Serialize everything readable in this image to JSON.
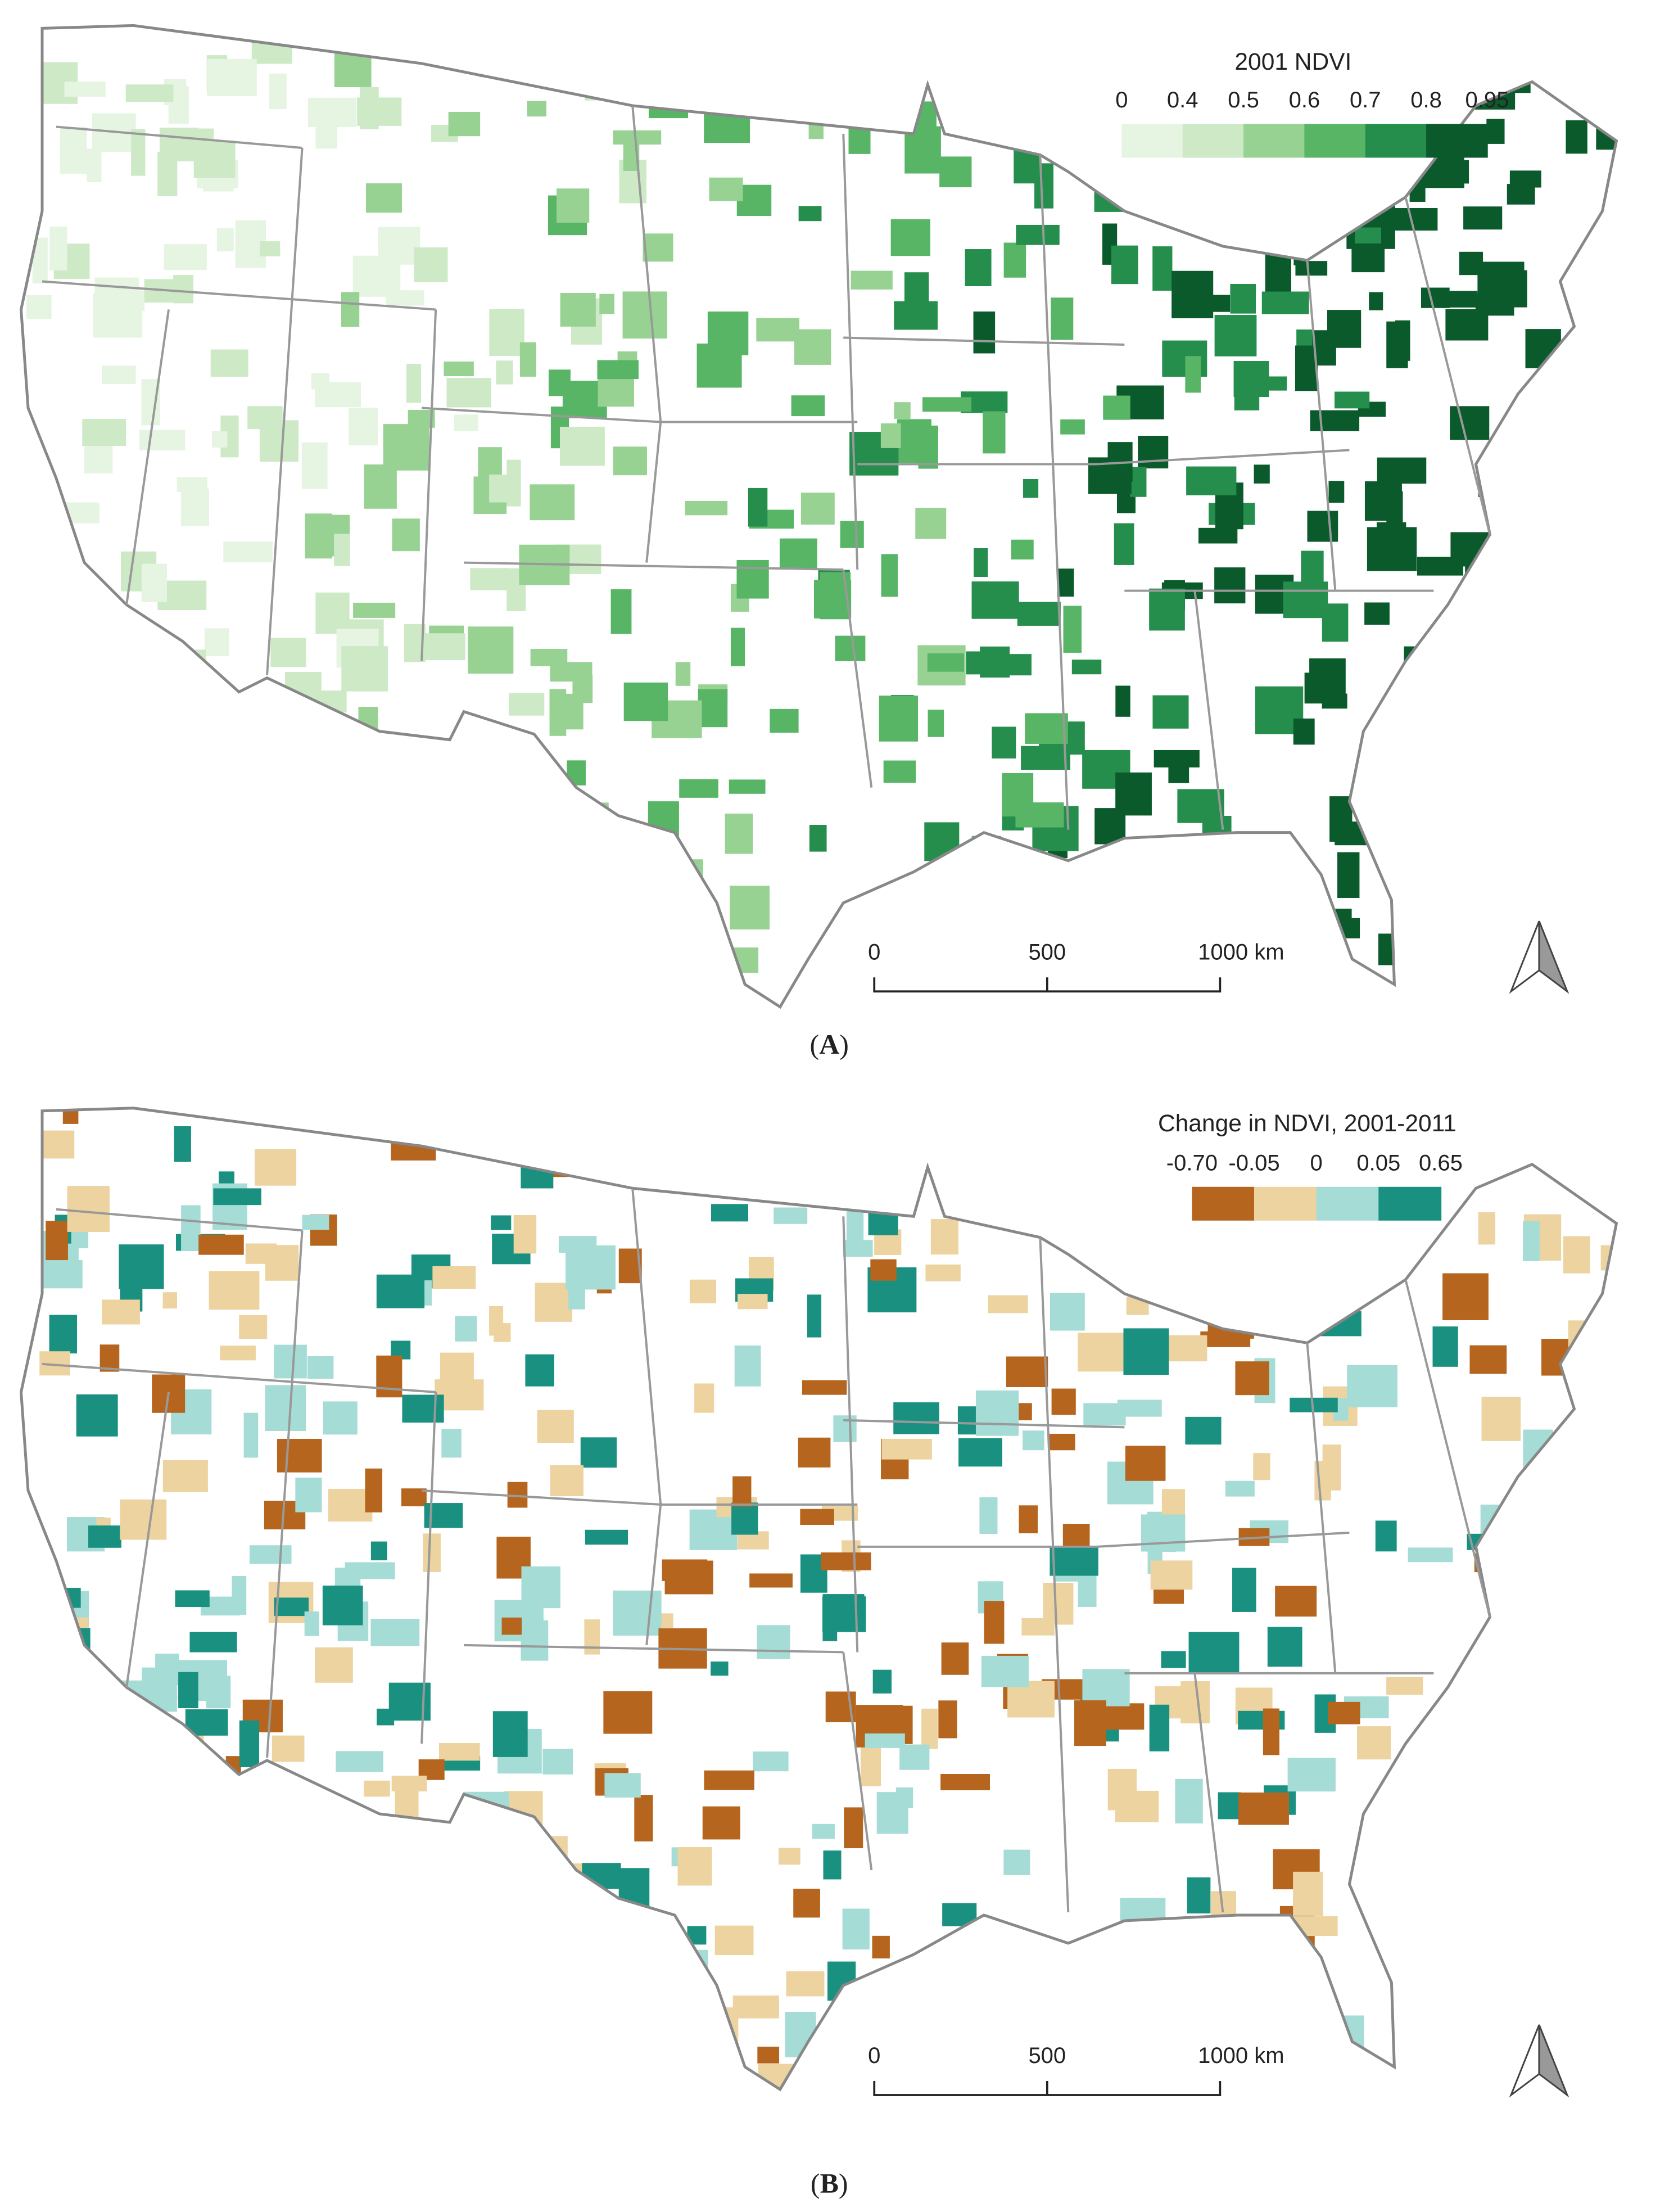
{
  "panels": [
    {
      "legend": {
        "title": "2001 NDVI",
        "ticks": [
          "0",
          "0.4",
          "0.5",
          "0.6",
          "0.7",
          "0.8",
          "0.95"
        ],
        "colors": [
          "#e6f4e2",
          "#cde9c6",
          "#97d293",
          "#58b566",
          "#268e4d",
          "#0b5a2b"
        ]
      },
      "scale": [
        "0",
        "500",
        "1000 km"
      ],
      "label": "A"
    },
    {
      "legend": {
        "title": "Change in NDVI, 2001-2011",
        "ticks": [
          "-0.70",
          "-0.05",
          "0",
          "0.05",
          "0.65"
        ],
        "colors": [
          "#b5651d",
          "#ecd3a0",
          "#a6dcd6",
          "#1a9180"
        ]
      },
      "scale": [
        "0",
        "500",
        "1000 km"
      ],
      "label": "B"
    }
  ]
}
